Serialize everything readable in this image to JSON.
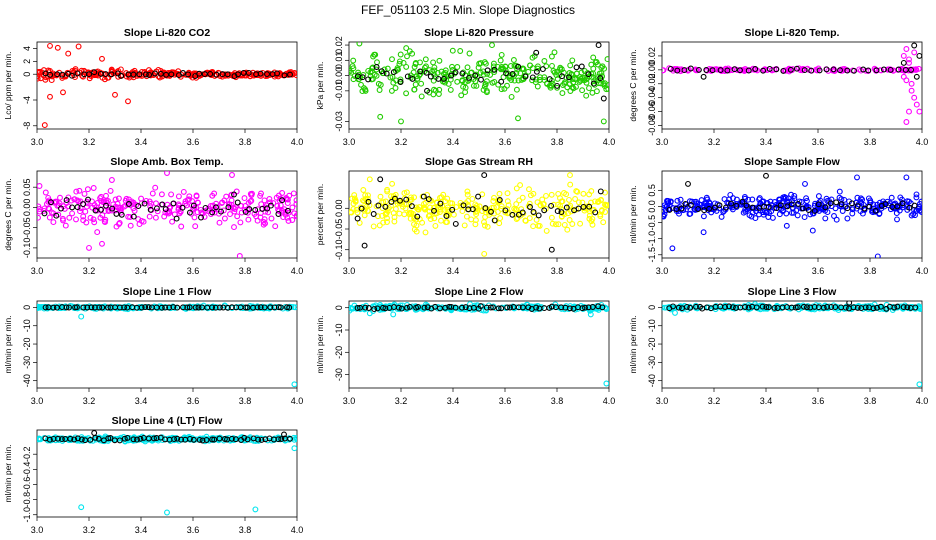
{
  "title": "FEF_051103  2.5 Min. Slope Diagnostics",
  "colors": {
    "black": "#000000",
    "red": "#ff0000",
    "green": "#22cc00",
    "magenta": "#ff00ff",
    "yellow": "#ffff00",
    "blue": "#0000ff",
    "cyan": "#00e5ee"
  },
  "chart_data": [
    {
      "type": "scatter",
      "title": "Slope Li-820 CO2",
      "ylabel": "Lco/ ppm per min.",
      "xlim": [
        3.0,
        4.0
      ],
      "ylim": [
        -8.5,
        5
      ],
      "x_ticks": [
        "3.0",
        "3.2",
        "3.4",
        "3.6",
        "3.8",
        "4.0"
      ],
      "y_ticks": [
        "-8",
        "-4",
        "0",
        "2",
        "4"
      ],
      "color": "red",
      "spread": 0.9,
      "spread_end": 0.3,
      "bg_n": 280,
      "outliers": [
        [
          3.03,
          -7.9
        ],
        [
          3.05,
          4.4
        ],
        [
          3.08,
          4.1
        ],
        [
          3.16,
          4.3
        ],
        [
          3.05,
          -3.5
        ],
        [
          3.1,
          -2.8
        ],
        [
          3.3,
          -3.2
        ],
        [
          3.35,
          -4.2
        ],
        [
          3.12,
          3.2
        ],
        [
          3.25,
          2.4
        ]
      ],
      "black_n": 45,
      "black_spread": 0.4,
      "black_outliers": []
    },
    {
      "type": "scatter",
      "title": "Slope Li-820 Pressure",
      "ylabel": "kPa per min.",
      "xlim": [
        3.0,
        4.0
      ],
      "ylim": [
        -0.035,
        0.022
      ],
      "x_ticks": [
        "3.0",
        "3.2",
        "3.4",
        "3.6",
        "3.8",
        "4.0"
      ],
      "y_ticks": [
        "-0.03",
        "-0.01",
        "0.00",
        "0.01",
        "0.02"
      ],
      "color": "green",
      "spread": 0.014,
      "spread_end": 0.014,
      "bg_n": 330,
      "outliers": [
        [
          3.04,
          0.021
        ],
        [
          3.22,
          0.018
        ],
        [
          3.55,
          0.02
        ],
        [
          3.2,
          -0.03
        ],
        [
          3.98,
          -0.03
        ],
        [
          3.65,
          -0.028
        ],
        [
          3.12,
          -0.027
        ]
      ],
      "black_n": 40,
      "black_spread": 0.01,
      "black_outliers": [
        [
          3.96,
          0.02
        ],
        [
          3.98,
          -0.015
        ],
        [
          3.72,
          0.015
        ],
        [
          3.3,
          -0.01
        ]
      ]
    },
    {
      "type": "scatter",
      "title": "Slope Li-820 Temp.",
      "ylabel": "degrees C per min.",
      "xlim": [
        3.0,
        4.0
      ],
      "ylim": [
        -0.085,
        0.04
      ],
      "x_ticks": [
        "3.0",
        "3.2",
        "3.4",
        "3.6",
        "3.8",
        "4.0"
      ],
      "y_ticks": [
        "-0.08",
        "-0.06",
        "-0.04",
        "-0.02",
        "0.00",
        "0.02"
      ],
      "color": "magenta",
      "spread": 0.002,
      "spread_end": 0.002,
      "bg_n": 140,
      "outliers": [
        [
          3.93,
          0.02
        ],
        [
          3.94,
          0.03
        ],
        [
          3.95,
          0.015
        ],
        [
          3.96,
          -0.02
        ],
        [
          3.97,
          -0.04
        ],
        [
          3.95,
          -0.06
        ],
        [
          3.94,
          -0.075
        ],
        [
          3.96,
          -0.03
        ],
        [
          3.98,
          -0.05
        ],
        [
          3.93,
          -0.01
        ],
        [
          3.95,
          0.01
        ],
        [
          3.97,
          0.025
        ],
        [
          3.99,
          -0.06
        ],
        [
          3.96,
          0.0
        ],
        [
          3.94,
          -0.015
        ]
      ],
      "black_n": 35,
      "black_spread": 0.003,
      "black_outliers": [
        [
          3.97,
          0.035
        ],
        [
          3.99,
          0.02
        ],
        [
          3.98,
          -0.01
        ],
        [
          3.93,
          0.01
        ],
        [
          3.16,
          -0.01
        ]
      ]
    },
    {
      "type": "scatter",
      "title": "Slope Amb. Box Temp.",
      "ylabel": "degrees C per min.",
      "xlim": [
        3.0,
        4.0
      ],
      "ylim": [
        -0.125,
        0.09
      ],
      "x_ticks": [
        "3.0",
        "3.2",
        "3.4",
        "3.6",
        "3.8",
        "4.0"
      ],
      "y_ticks": [
        "-0.10",
        "-0.05",
        "0.00",
        "0.05"
      ],
      "color": "magenta",
      "spread": 0.05,
      "spread_end": 0.05,
      "bg_n": 300,
      "outliers": [
        [
          3.78,
          -0.12
        ],
        [
          3.75,
          0.08
        ],
        [
          3.5,
          0.085
        ],
        [
          3.2,
          -0.1
        ],
        [
          3.25,
          -0.09
        ]
      ],
      "black_n": 45,
      "black_spread": 0.04,
      "black_outliers": []
    },
    {
      "type": "scatter",
      "title": "Slope Gas Stream RH",
      "ylabel": "percent per min.",
      "xlim": [
        3.0,
        4.0
      ],
      "ylim": [
        -0.12,
        0.09
      ],
      "x_ticks": [
        "3.0",
        "3.2",
        "3.4",
        "3.6",
        "3.8",
        "4.0"
      ],
      "y_ticks": [
        "-0.10",
        "-0.05",
        "0.00"
      ],
      "color": "yellow",
      "spread": 0.05,
      "spread_end": 0.05,
      "bg_n": 320,
      "outliers": [
        [
          3.52,
          -0.11
        ],
        [
          3.08,
          0.07
        ],
        [
          3.85,
          0.08
        ]
      ],
      "black_n": 45,
      "black_spread": 0.05,
      "black_outliers": [
        [
          3.78,
          -0.1
        ],
        [
          3.12,
          0.07
        ],
        [
          3.52,
          0.08
        ],
        [
          3.06,
          -0.09
        ]
      ]
    },
    {
      "type": "scatter",
      "title": "Slope Sample Flow",
      "ylabel": "ml/min per min.",
      "xlim": [
        3.0,
        4.0
      ],
      "ylim": [
        -1.6,
        1.1
      ],
      "x_ticks": [
        "3.0",
        "3.2",
        "3.4",
        "3.6",
        "3.8",
        "4.0"
      ],
      "y_ticks": [
        "-1.5",
        "-1.0",
        "-0.5",
        "0.0",
        "0.5"
      ],
      "color": "blue",
      "spread": 0.35,
      "spread_end": 0.35,
      "bg_n": 340,
      "outliers": [
        [
          3.83,
          -1.55
        ],
        [
          3.16,
          -0.8
        ],
        [
          3.48,
          -0.6
        ],
        [
          3.58,
          -0.75
        ],
        [
          3.75,
          0.9
        ],
        [
          3.94,
          0.9
        ],
        [
          3.04,
          -1.3
        ],
        [
          3.55,
          0.7
        ]
      ],
      "black_n": 45,
      "black_spread": 0.25,
      "black_outliers": [
        [
          3.4,
          0.95
        ],
        [
          3.1,
          0.7
        ]
      ]
    },
    {
      "type": "scatter",
      "title": "Slope Line 1 Flow",
      "ylabel": "ml/min per min.",
      "xlim": [
        3.0,
        4.0
      ],
      "ylim": [
        -44,
        3.5
      ],
      "x_ticks": [
        "3.0",
        "3.2",
        "3.4",
        "3.6",
        "3.8",
        "4.0"
      ],
      "y_ticks": [
        "-40",
        "-30",
        "-20",
        "-10",
        "0"
      ],
      "color": "cyan",
      "spread": 0.8,
      "spread_end": 0.8,
      "bg_n": 230,
      "outliers": [
        [
          3.99,
          -42
        ],
        [
          3.17,
          -5
        ]
      ],
      "black_n": 60,
      "black_spread": 0.3,
      "black_outliers": []
    },
    {
      "type": "scatter",
      "title": "Slope Line 2 Flow",
      "ylabel": "ml/min per min.",
      "xlim": [
        3.0,
        4.0
      ],
      "ylim": [
        -36,
        3
      ],
      "x_ticks": [
        "3.0",
        "3.2",
        "3.4",
        "3.6",
        "3.8",
        "4.0"
      ],
      "y_ticks": [
        "-30",
        "-20",
        "-10",
        "0"
      ],
      "color": "cyan",
      "spread": 1.4,
      "spread_end": 1.4,
      "bg_n": 230,
      "outliers": [
        [
          3.99,
          -34
        ],
        [
          3.17,
          -3
        ],
        [
          3.08,
          -2.5
        ],
        [
          3.93,
          -3
        ]
      ],
      "black_n": 60,
      "black_spread": 1.0,
      "black_outliers": []
    },
    {
      "type": "scatter",
      "title": "Slope Line 3 Flow",
      "ylabel": "ml/min per min.",
      "xlim": [
        3.0,
        4.0
      ],
      "ylim": [
        -44,
        3.5
      ],
      "x_ticks": [
        "3.0",
        "3.2",
        "3.4",
        "3.6",
        "3.8",
        "4.0"
      ],
      "y_ticks": [
        "-40",
        "-30",
        "-20",
        "-10",
        "0"
      ],
      "color": "cyan",
      "spread": 1.3,
      "spread_end": 1.3,
      "bg_n": 230,
      "outliers": [
        [
          3.99,
          -42
        ],
        [
          3.05,
          -3
        ]
      ],
      "black_n": 60,
      "black_spread": 1.0,
      "black_outliers": [
        [
          3.72,
          2.5
        ]
      ]
    },
    {
      "type": "scatter",
      "title": "Slope Line 4 (LT) Flow",
      "ylabel": "ml/min per min.",
      "xlim": [
        3.0,
        4.0
      ],
      "ylim": [
        -1.03,
        0.12
      ],
      "x_ticks": [
        "3.0",
        "3.2",
        "3.4",
        "3.6",
        "3.8",
        "4.0"
      ],
      "y_ticks": [
        "-1.0",
        "-0.8",
        "-0.6",
        "-0.4",
        "-0.2"
      ],
      "color": "cyan",
      "spread": 0.03,
      "spread_end": 0.03,
      "bg_n": 260,
      "outliers": [
        [
          3.17,
          -0.9
        ],
        [
          3.5,
          -0.97
        ],
        [
          3.84,
          -0.93
        ],
        [
          3.99,
          -0.12
        ]
      ],
      "black_n": 60,
      "black_spread": 0.03,
      "black_outliers": [
        [
          3.22,
          0.08
        ],
        [
          3.95,
          0.06
        ]
      ]
    }
  ]
}
